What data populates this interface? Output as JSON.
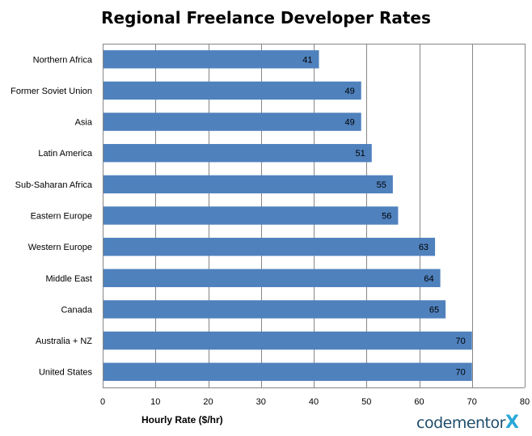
{
  "chart_data": {
    "type": "bar",
    "orientation": "horizontal",
    "title": "Regional Freelance Developer Rates",
    "xlabel": "Hourly Rate ($/hr)",
    "ylabel": "",
    "categories": [
      "Northern Africa",
      "Former Soviet Union",
      "Asia",
      "Latin America",
      "Sub-Saharan Africa",
      "Eastern Europe",
      "Western Europe",
      "Middle East",
      "Canada",
      "Australia + NZ",
      "United States"
    ],
    "values": [
      41,
      49,
      49,
      51,
      55,
      56,
      63,
      64,
      65,
      70,
      70
    ],
    "xlim": [
      0,
      80
    ],
    "xticks": [
      0,
      10,
      20,
      30,
      40,
      50,
      60,
      70,
      80
    ],
    "grid": "vertical",
    "bar_color": "#4f81bd"
  },
  "brand": {
    "name": "codementor",
    "mark": "X"
  }
}
